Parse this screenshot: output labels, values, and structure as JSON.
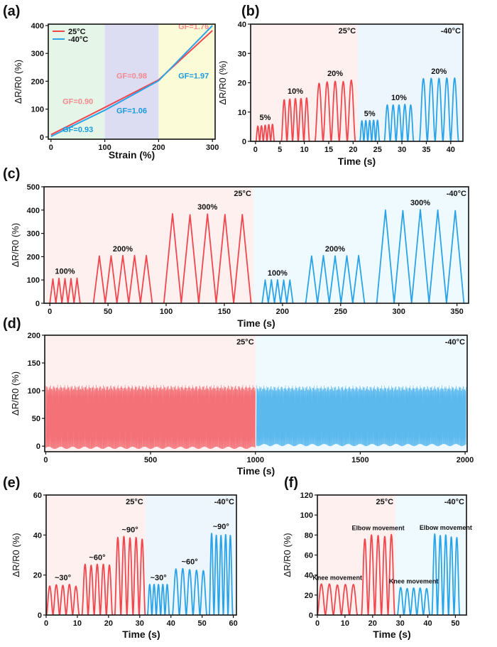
{
  "colors": {
    "red": "#f0474f",
    "blue": "#2aa3e8",
    "bg_red": "#fdf0ef",
    "bg_blue": "#eefaff",
    "bg_blue_b": "#eef6fd",
    "label_red": "#f28a8f",
    "label_blue": "#1a9bdc",
    "zone1": "#e5f5e8",
    "zone2": "#dcdcf2",
    "zone3": "#fcfbd8"
  },
  "chart_data": [
    {
      "id": "a",
      "panel_label": "(a)",
      "type": "line",
      "xlabel": "Strain (%)",
      "ylabel": "ΔR/R0 (%)",
      "xlim": [
        -5,
        305
      ],
      "ylim": [
        -8,
        405
      ],
      "xticks": [
        0,
        100,
        200,
        300
      ],
      "yticks": [
        0,
        100,
        200,
        300,
        400
      ],
      "zones": [
        {
          "from": -5,
          "to": 100,
          "color": "zone1"
        },
        {
          "from": 100,
          "to": 200,
          "color": "zone2"
        },
        {
          "from": 200,
          "to": 305,
          "color": "zone3"
        }
      ],
      "legend": {
        "position": "top-left",
        "entries": [
          {
            "name": "25°C",
            "color": "red"
          },
          {
            "name": "-40°C",
            "color": "blue"
          }
        ]
      },
      "series": [
        {
          "name": "25°C",
          "color": "red",
          "x": [
            0,
            100,
            200,
            300
          ],
          "y": [
            8,
            106,
            205,
            382
          ]
        },
        {
          "name": "-40°C",
          "color": "blue",
          "x": [
            0,
            100,
            200,
            300
          ],
          "y": [
            2,
            96,
            202,
            400
          ]
        }
      ],
      "annotations": [
        {
          "text": "GF=0.90",
          "x": 50,
          "y": 118,
          "color": "label_red"
        },
        {
          "text": "GF=0.98",
          "x": 150,
          "y": 210,
          "color": "label_red"
        },
        {
          "text": "GF=1.76",
          "x": 265,
          "y": 387,
          "color": "label_red"
        },
        {
          "text": "GF=0.93",
          "x": 50,
          "y": 17,
          "color": "label_blue"
        },
        {
          "text": "GF=1.06",
          "x": 150,
          "y": 85,
          "color": "label_blue"
        },
        {
          "text": "GF=1.97",
          "x": 265,
          "y": 210,
          "color": "label_blue"
        }
      ]
    },
    {
      "id": "b",
      "panel_label": "(b)",
      "type": "line",
      "xlabel": "Time (s)",
      "ylabel": "ΔR/R0 (%)",
      "xlim": [
        -1,
        42.5
      ],
      "ylim": [
        0,
        40
      ],
      "xticks": [
        0,
        5,
        10,
        15,
        20,
        25,
        30,
        35,
        40
      ],
      "yticks": [
        0,
        10,
        20,
        30,
        40
      ],
      "regions": [
        {
          "from": -1,
          "to": 21,
          "color": "bg_red",
          "label": "25°C"
        },
        {
          "from": 21,
          "to": 42.5,
          "color": "bg_blue_b",
          "label": "-40°C"
        }
      ],
      "series": [
        {
          "name": "25°C",
          "color": "red",
          "shape": "smooth",
          "groups": [
            {
              "start": 0.1,
              "period": 0.75,
              "peaks": [
                5.2,
                5.3,
                5.5,
                5.7,
                5.8
              ],
              "label": "5%"
            },
            {
              "start": 5.3,
              "period": 1.15,
              "peaks": [
                14.2,
                14.4,
                14.6,
                14.6,
                14.8
              ],
              "label": "10%"
            },
            {
              "start": 12.2,
              "period": 1.65,
              "peaks": [
                19.8,
                20.3,
                20.5,
                20.4,
                20.9
              ],
              "label": "20%"
            }
          ]
        },
        {
          "name": "-40°C",
          "color": "blue",
          "shape": "smooth",
          "groups": [
            {
              "start": 21.4,
              "period": 0.8,
              "peaks": [
                7.0,
                7.1,
                7.1,
                7.2,
                7.2
              ],
              "label": "5%"
            },
            {
              "start": 26.4,
              "period": 1.2,
              "peaks": [
                12.4,
                12.4,
                12.4,
                12.6,
                12.4
              ],
              "label": "10%"
            },
            {
              "start": 33.6,
              "period": 1.6,
              "peaks": [
                21.4,
                21.5,
                21.5,
                21.6,
                21.6
              ],
              "label": "20%"
            }
          ]
        }
      ]
    },
    {
      "id": "c",
      "panel_label": "(c)",
      "type": "line",
      "xlabel": "Time (s)",
      "ylabel": "ΔR/R0 (%)",
      "xlim": [
        -5,
        360
      ],
      "ylim": [
        0,
        500
      ],
      "xticks": [
        0,
        50,
        100,
        150,
        200,
        250,
        300,
        350
      ],
      "yticks": [
        0,
        100,
        200,
        300,
        400,
        500
      ],
      "regions": [
        {
          "from": -5,
          "to": 175,
          "color": "bg_red",
          "label": "25°C"
        },
        {
          "from": 175,
          "to": 360,
          "color": "bg_blue",
          "label": "-40°C"
        }
      ],
      "series": [
        {
          "name": "25°C",
          "color": "red",
          "shape": "triangle",
          "groups": [
            {
              "start": 0,
              "period": 5.2,
              "peaks": [
                105,
                107,
                106,
                106,
                108
              ],
              "label": "100%"
            },
            {
              "start": 37.5,
              "period": 10.1,
              "peaks": [
                203,
                204,
                205,
                205,
                205
              ],
              "label": "200%"
            },
            {
              "start": 98,
              "period": 15,
              "peaks": [
                384,
                380,
                383,
                381,
                381
              ],
              "label": "300%"
            }
          ]
        },
        {
          "name": "-40°C",
          "color": "blue",
          "shape": "triangle",
          "groups": [
            {
              "start": 182.5,
              "period": 5.3,
              "peaks": [
                100,
                101,
                101,
                100,
                100
              ],
              "label": "100%"
            },
            {
              "start": 220,
              "period": 10.1,
              "peaks": [
                203,
                205,
                203,
                204,
                205
              ],
              "label": "200%"
            },
            {
              "start": 281,
              "period": 15,
              "peaks": [
                400,
                398,
                402,
                400,
                398
              ],
              "label": "300%"
            }
          ]
        }
      ]
    },
    {
      "id": "d",
      "panel_label": "(d)",
      "type": "line",
      "xlabel": "Time (s)",
      "ylabel": "ΔR/R0 (%)",
      "xlim": [
        -5,
        2010
      ],
      "ylim": [
        -10,
        200
      ],
      "xticks": [
        0,
        500,
        1000,
        1500,
        2000
      ],
      "yticks": [
        0,
        50,
        100,
        150,
        200
      ],
      "regions": [
        {
          "from": -5,
          "to": 1003,
          "color": "bg_red",
          "label": "25°C"
        },
        {
          "from": 1003,
          "to": 2010,
          "color": "bg_blue",
          "label": "-40°C"
        }
      ],
      "series": [
        {
          "name": "25°C",
          "color": "red",
          "shape": "dense",
          "x_range": [
            0,
            1000
          ],
          "max_approx": 105,
          "min_approx": -3
        },
        {
          "name": "-40°C",
          "color": "blue",
          "shape": "dense",
          "x_range": [
            1005,
            2005
          ],
          "max_approx": 104,
          "min_approx": 2
        }
      ]
    },
    {
      "id": "e",
      "panel_label": "(e)",
      "type": "line",
      "xlabel": "Time (s)",
      "ylabel": "ΔR/R0 (%)",
      "xlim": [
        0,
        61
      ],
      "ylim": [
        0,
        60
      ],
      "xticks": [
        0,
        10,
        20,
        30,
        40,
        50,
        60
      ],
      "yticks": [
        0,
        20,
        40,
        60
      ],
      "regions": [
        {
          "from": 0,
          "to": 31.8,
          "color": "bg_red",
          "label": "25°C"
        },
        {
          "from": 31.8,
          "to": 61,
          "color": "bg_blue_b",
          "label": "-40°C"
        }
      ],
      "series": [
        {
          "name": "25°C",
          "color": "red",
          "shape": "smooth",
          "groups": [
            {
              "start": 0.1,
              "period": 2.1,
              "peaks": [
                14.5,
                15.1,
                14.8,
                15.3,
                14.4
              ],
              "label": "~30°"
            },
            {
              "start": 11.5,
              "period": 1.95,
              "peaks": [
                25.4,
                24.9,
                25.4,
                25.4,
                25.0
              ],
              "label": "~60°"
            },
            {
              "start": 22,
              "period": 1.95,
              "peaks": [
                38.8,
                39.3,
                38.6,
                38.8,
                37.9
              ],
              "label": "~90°"
            }
          ]
        },
        {
          "name": "-40°C",
          "color": "blue",
          "shape": "smooth",
          "groups": [
            {
              "start": 32.5,
              "period": 1.4,
              "peaks": [
                15.3,
                15.3,
                15.3,
                15.3,
                15.3
              ],
              "label": "~30°"
            },
            {
              "start": 40.5,
              "period": 2.2,
              "peaks": [
                23.0,
                23.2,
                22.7,
                22.4,
                22.2
              ],
              "label": "~60°"
            },
            {
              "start": 52.3,
              "period": 1.5,
              "peaks": [
                40.8,
                39.9,
                39.8,
                40.2,
                39.8
              ],
              "label": "~90°"
            }
          ]
        }
      ]
    },
    {
      "id": "f",
      "panel_label": "(f)",
      "type": "line",
      "xlabel": "Time (s)",
      "ylabel": "ΔR/R0 (%)",
      "xlim": [
        0,
        54
      ],
      "ylim": [
        0,
        120
      ],
      "xticks": [
        0,
        10,
        20,
        30,
        40,
        50
      ],
      "yticks": [
        0,
        20,
        40,
        60,
        80,
        100,
        120
      ],
      "regions": [
        {
          "from": 0,
          "to": 28.3,
          "color": "bg_red",
          "label": "25°C"
        },
        {
          "from": 28.3,
          "to": 54,
          "color": "bg_blue",
          "label": "-40°C"
        }
      ],
      "series": [
        {
          "name": "25°C",
          "color": "red",
          "shape": "smooth",
          "groups": [
            {
              "start": 0,
              "period": 2.9,
              "peaks": [
                31,
                31,
                30,
                30.5,
                30.5
              ],
              "label": "Knee movement"
            },
            {
              "start": 16,
              "period": 2.4,
              "peaks": [
                76,
                80,
                79.5,
                78.5,
                80.5
              ],
              "label": "Elbow movement"
            }
          ]
        },
        {
          "name": "-40°C",
          "color": "blue",
          "shape": "smooth",
          "groups": [
            {
              "start": 29,
              "period": 2.35,
              "peaks": [
                27.5,
                26.5,
                27,
                27,
                26.5
              ],
              "label": "Knee movement"
            },
            {
              "start": 41.5,
              "period": 2.0,
              "peaks": [
                81,
                79.5,
                80,
                78,
                77.5
              ],
              "label": "Elbow movement"
            }
          ]
        }
      ]
    }
  ]
}
